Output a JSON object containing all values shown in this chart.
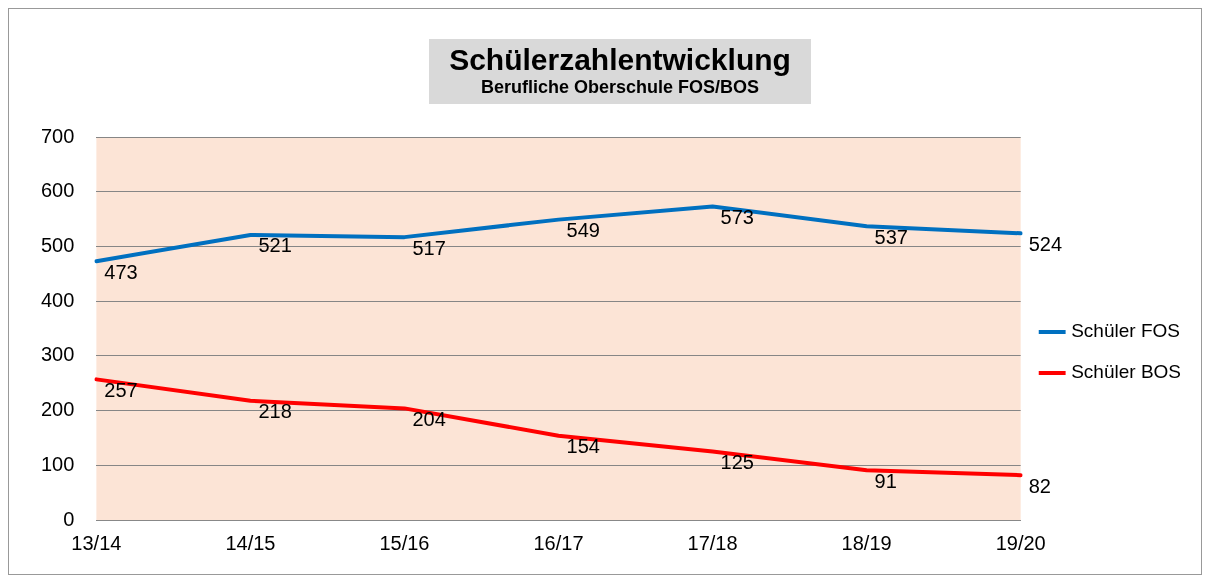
{
  "chart_data": {
    "type": "line",
    "title": "Schülerzahlentwicklung",
    "subtitle": "Berufliche Oberschule FOS/BOS",
    "categories": [
      "13/14",
      "14/15",
      "15/16",
      "16/17",
      "17/18",
      "18/19",
      "19/20"
    ],
    "series": [
      {
        "name": "Schüler FOS",
        "color": "#0070c0",
        "values": [
          473,
          521,
          517,
          549,
          573,
          537,
          524
        ]
      },
      {
        "name": "Schüler BOS",
        "color": "#ff0000",
        "values": [
          257,
          218,
          204,
          154,
          125,
          91,
          82
        ]
      }
    ],
    "ylim": [
      0,
      700
    ],
    "yticks": [
      0,
      100,
      200,
      300,
      400,
      500,
      600,
      700
    ],
    "grid": "y",
    "legend": "right",
    "marker": "none",
    "line_style": "solid",
    "data_labels": true
  }
}
